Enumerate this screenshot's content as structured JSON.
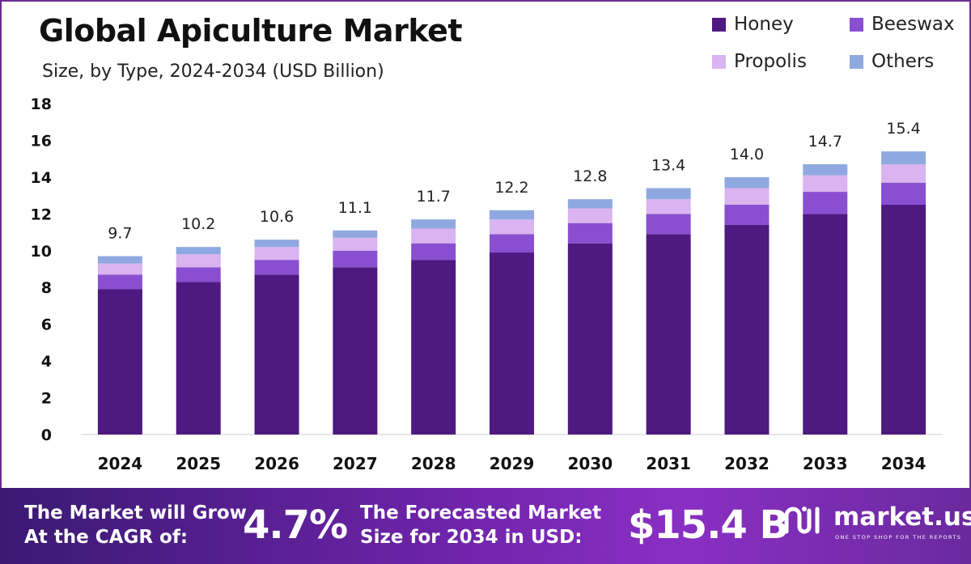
{
  "header": {
    "title": "Global Apiculture Market",
    "subtitle": "Size, by Type, 2024-2034 (USD Billion)"
  },
  "legend": [
    {
      "name": "Honey",
      "color": "#4e1980"
    },
    {
      "name": "Beeswax",
      "color": "#8a4fd1"
    },
    {
      "name": "Propolis",
      "color": "#d9b4f0"
    },
    {
      "name": "Others",
      "color": "#8fa9e0"
    }
  ],
  "chart_data": {
    "type": "bar",
    "stacked": true,
    "categories": [
      "2024",
      "2025",
      "2026",
      "2027",
      "2028",
      "2029",
      "2030",
      "2031",
      "2032",
      "2033",
      "2034"
    ],
    "series": [
      {
        "name": "Honey",
        "values": [
          7.9,
          8.3,
          8.7,
          9.1,
          9.5,
          9.9,
          10.4,
          10.9,
          11.4,
          12.0,
          12.5
        ]
      },
      {
        "name": "Beeswax",
        "values": [
          0.8,
          0.8,
          0.8,
          0.9,
          0.9,
          1.0,
          1.1,
          1.1,
          1.1,
          1.2,
          1.2
        ]
      },
      {
        "name": "Propolis",
        "values": [
          0.6,
          0.7,
          0.7,
          0.7,
          0.8,
          0.8,
          0.8,
          0.8,
          0.9,
          0.9,
          1.0
        ]
      },
      {
        "name": "Others",
        "values": [
          0.4,
          0.4,
          0.4,
          0.4,
          0.5,
          0.5,
          0.5,
          0.6,
          0.6,
          0.6,
          0.7
        ]
      }
    ],
    "totals": [
      "9.7",
      "10.2",
      "10.6",
      "11.1",
      "11.7",
      "12.2",
      "12.8",
      "13.4",
      "14.0",
      "14.7",
      "15.4"
    ],
    "ylim": [
      0,
      18
    ],
    "yticks": [
      0,
      2,
      4,
      6,
      8,
      10,
      12,
      14,
      16,
      18
    ],
    "xlabel": "",
    "ylabel": "",
    "grid": false,
    "legend_position": "top-right"
  },
  "banner": {
    "cagr_label_line1": "The Market will Grow",
    "cagr_label_line2": "At the CAGR of:",
    "cagr_value": "4.7%",
    "forecast_label_line1": "The Forecasted Market",
    "forecast_label_line2": "Size for 2034 in USD:",
    "forecast_value": "$15.4 B",
    "brand_name": "market.us",
    "brand_tagline": "ONE STOP SHOP FOR THE REPORTS"
  }
}
